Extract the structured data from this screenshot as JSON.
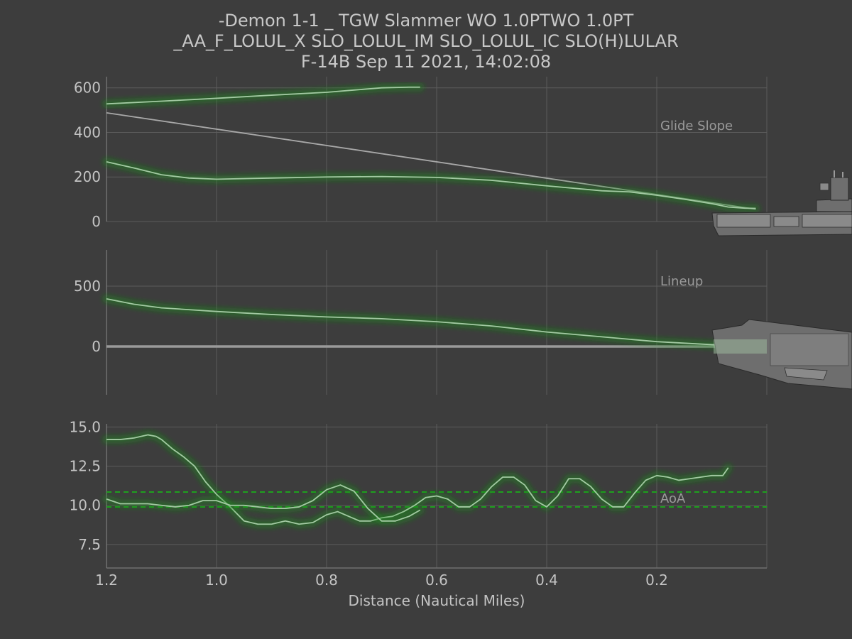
{
  "title": {
    "line1": "-Demon 1-1 _ TGW Slammer WO 1.0PTWO 1.0PT",
    "line2": "_AA_F_LOLUL_X SLO_LOLUL_IM  SLO_LOLUL_IC SLO(H)LULAR",
    "line3": "F-14B Sep 11 2021, 14:02:08"
  },
  "xlabel": "Distance (Nautical Miles)",
  "x_ticks": [
    "1.2",
    "1.0",
    "0.8",
    "0.6",
    "0.4",
    "0.2"
  ],
  "x_tick_values": [
    1.2,
    1.0,
    0.8,
    0.6,
    0.4,
    0.2
  ],
  "colors": {
    "background": "#3d3d3d",
    "trace": "#a3c9a3",
    "glow": "#1d8a1d",
    "reference": "#a8a8a8",
    "aoa_band": "#1ea01e"
  },
  "icons": [
    "carrier-side-icon",
    "carrier-top-icon"
  ],
  "chart_data": [
    {
      "type": "line",
      "label": "Glide Slope",
      "xlim": [
        1.2,
        0.0
      ],
      "ylim": [
        0,
        650
      ],
      "y_ticks": [
        "0",
        "200",
        "400",
        "600"
      ],
      "y_tick_values": [
        0,
        200,
        400,
        600
      ],
      "reference": {
        "x": [
          1.2,
          0.02
        ],
        "y": [
          488,
          55
        ]
      },
      "series": [
        {
          "x": [
            1.2,
            1.1,
            1.0,
            0.9,
            0.8,
            0.75,
            0.7,
            0.65,
            0.63
          ],
          "y": [
            528,
            540,
            553,
            567,
            580,
            590,
            600,
            603,
            603
          ]
        },
        {
          "x": [
            1.2,
            1.15,
            1.1,
            1.05,
            1.0,
            0.9,
            0.8,
            0.7,
            0.6,
            0.5,
            0.4,
            0.3,
            0.25,
            0.2,
            0.15,
            0.1,
            0.07,
            0.04,
            0.02
          ],
          "y": [
            268,
            240,
            210,
            195,
            190,
            195,
            200,
            202,
            198,
            185,
            160,
            138,
            133,
            118,
            100,
            80,
            65,
            60,
            59
          ]
        }
      ]
    },
    {
      "type": "line",
      "label": "Lineup",
      "xlim": [
        1.2,
        0.0
      ],
      "ylim": [
        -400,
        800
      ],
      "y_ticks": [
        "0",
        "500"
      ],
      "y_tick_values": [
        0,
        500
      ],
      "reference": {
        "x": [
          1.2,
          0.0
        ],
        "y": [
          0,
          0
        ]
      },
      "series": [
        {
          "x": [
            1.2,
            1.15,
            1.1,
            1.0,
            0.9,
            0.8,
            0.7,
            0.6,
            0.5,
            0.4,
            0.3,
            0.2,
            0.1,
            0.02
          ],
          "y": [
            395,
            350,
            320,
            290,
            265,
            245,
            230,
            205,
            170,
            120,
            80,
            40,
            15,
            0
          ]
        }
      ]
    },
    {
      "type": "line",
      "label": "AoA",
      "xlim": [
        1.2,
        0.0
      ],
      "ylim": [
        6.0,
        15.2
      ],
      "y_ticks": [
        "7.5",
        "10.0",
        "12.5",
        "15.0"
      ],
      "y_tick_values": [
        7.5,
        10.0,
        12.5,
        15.0
      ],
      "band": [
        9.9,
        10.85
      ],
      "series": [
        {
          "x": [
            1.2,
            1.175,
            1.15,
            1.125,
            1.11,
            1.1,
            1.08,
            1.06,
            1.04,
            1.02,
            1.0,
            0.975,
            0.95,
            0.925,
            0.9,
            0.875,
            0.85,
            0.825,
            0.8,
            0.78,
            0.76,
            0.74,
            0.72,
            0.7,
            0.68,
            0.66,
            0.64,
            0.62,
            0.6,
            0.58,
            0.56,
            0.54,
            0.52,
            0.5,
            0.48,
            0.46,
            0.44,
            0.42,
            0.4,
            0.38,
            0.36,
            0.34,
            0.32,
            0.3,
            0.28,
            0.26,
            0.24,
            0.22,
            0.2,
            0.18,
            0.16,
            0.14,
            0.12,
            0.1,
            0.08,
            0.07
          ],
          "y": [
            14.2,
            14.2,
            14.3,
            14.5,
            14.4,
            14.2,
            13.6,
            13.1,
            12.5,
            11.5,
            10.7,
            9.9,
            9.0,
            8.8,
            8.8,
            9.0,
            8.8,
            8.9,
            9.4,
            9.6,
            9.3,
            9.0,
            9.0,
            9.2,
            9.3,
            9.6,
            10.0,
            10.5,
            10.6,
            10.4,
            9.9,
            9.9,
            10.4,
            11.2,
            11.8,
            11.8,
            11.3,
            10.3,
            9.9,
            10.6,
            11.7,
            11.7,
            11.2,
            10.4,
            9.9,
            9.9,
            10.8,
            11.6,
            11.9,
            11.8,
            11.6,
            11.7,
            11.8,
            11.9,
            11.9,
            12.4
          ]
        },
        {
          "x": [
            1.2,
            1.175,
            1.15,
            1.125,
            1.1,
            1.075,
            1.05,
            1.025,
            1.0,
            0.975,
            0.95,
            0.925,
            0.9,
            0.875,
            0.85,
            0.825,
            0.8,
            0.775,
            0.75,
            0.725,
            0.7,
            0.675,
            0.65,
            0.63
          ],
          "y": [
            10.4,
            10.1,
            10.1,
            10.1,
            10.0,
            9.9,
            10.0,
            10.3,
            10.3,
            10.0,
            10.0,
            9.9,
            9.8,
            9.8,
            9.9,
            10.3,
            11.0,
            11.3,
            10.9,
            9.8,
            9.0,
            9.0,
            9.3,
            9.7
          ]
        }
      ]
    }
  ]
}
